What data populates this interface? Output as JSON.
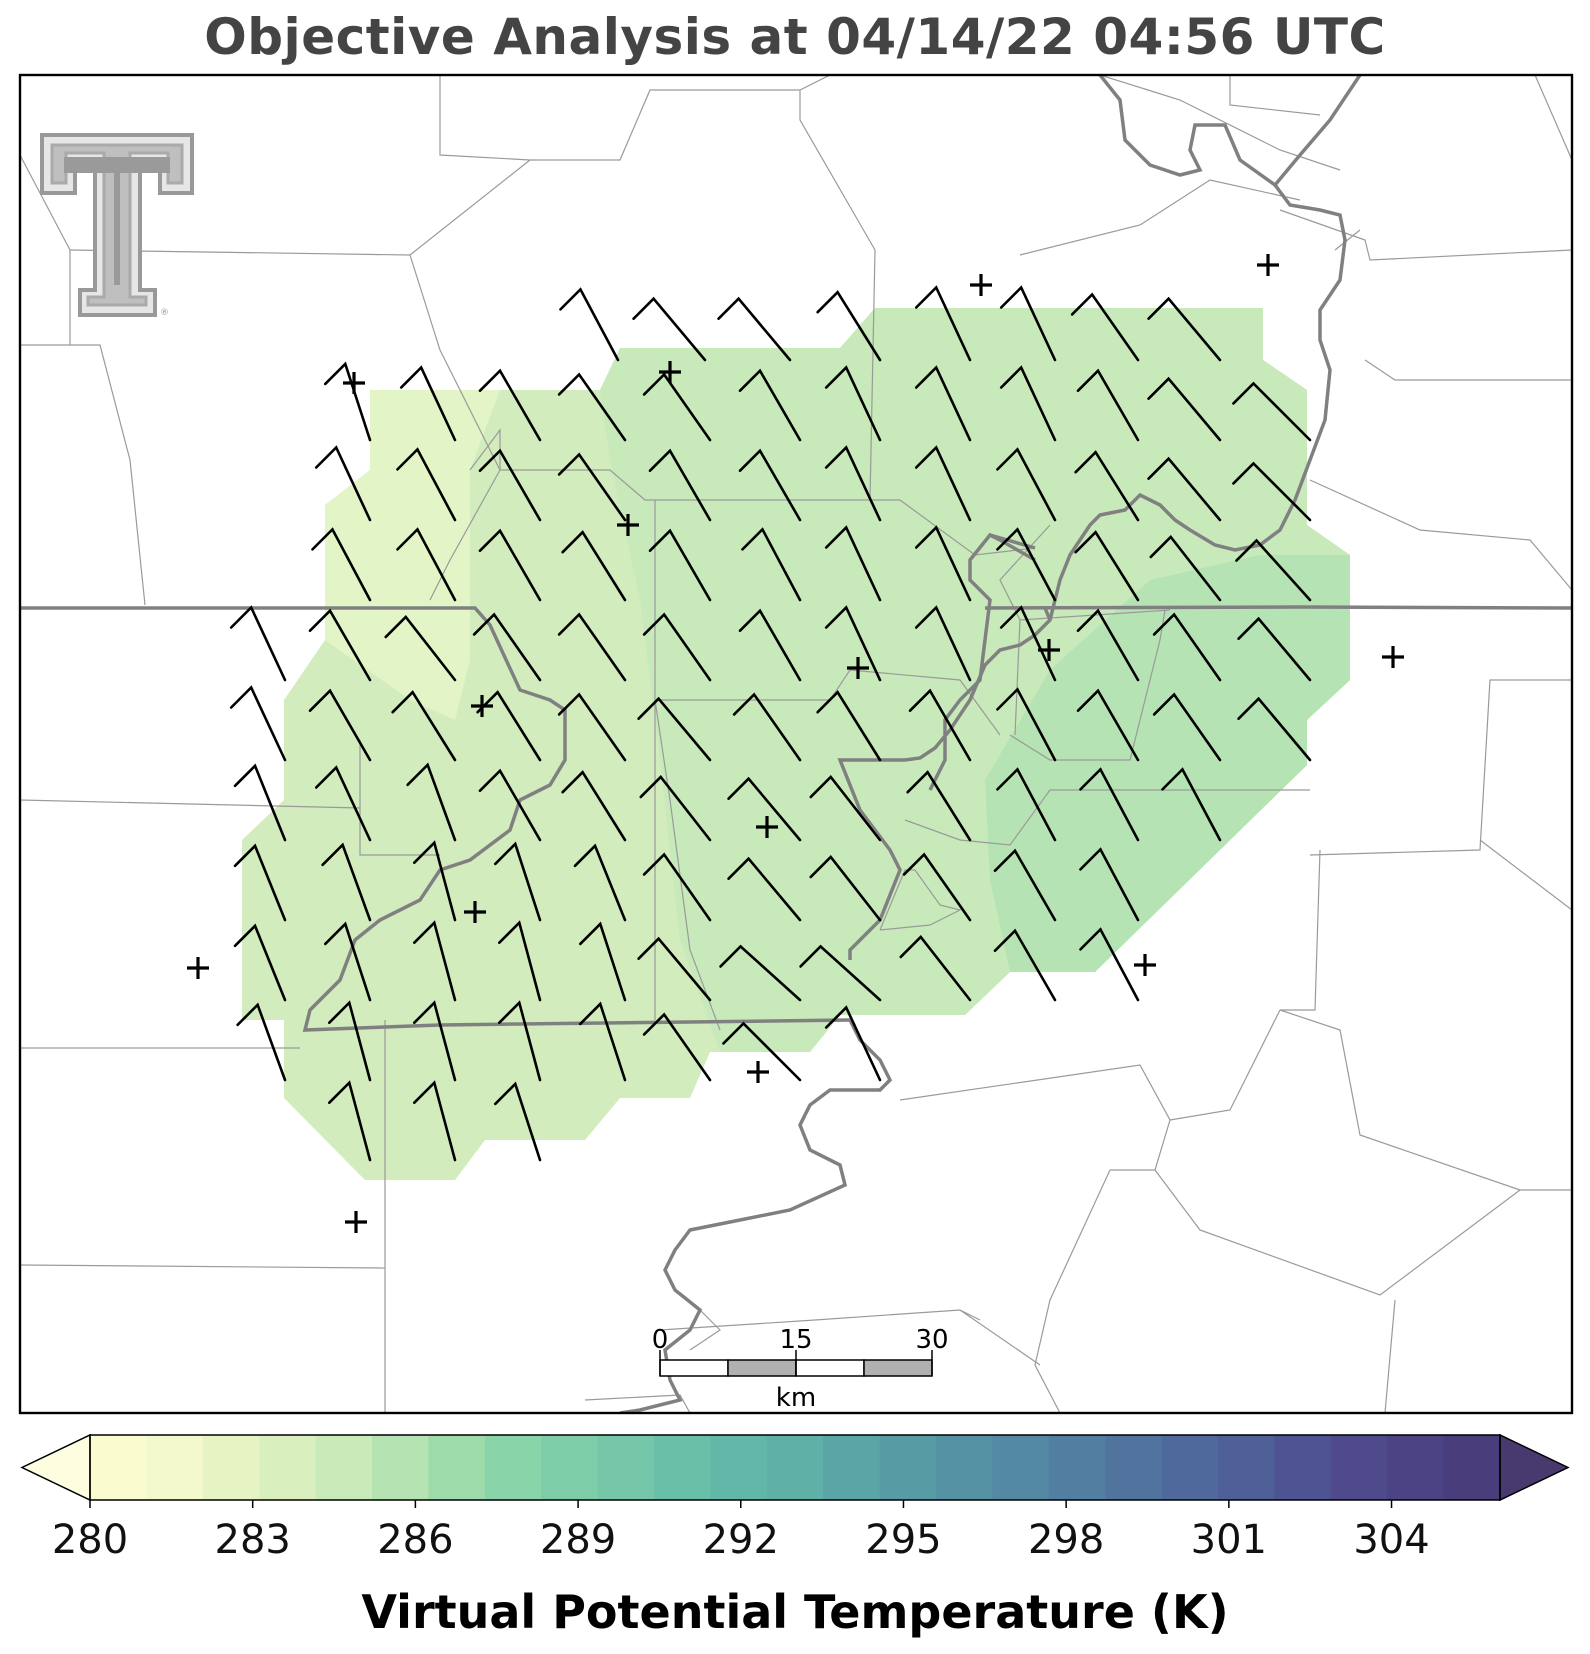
{
  "title": "Objective Analysis at 04/14/22 04:56 UTC",
  "colorbar": {
    "label": "Virtual Potential Temperature (K)",
    "min": 280,
    "max": 306,
    "ticks": [
      280,
      283,
      286,
      289,
      292,
      295,
      298,
      301,
      304
    ],
    "colors": [
      "#fbfbd0",
      "#f3f9cc",
      "#e6f4c4",
      "#d9efbe",
      "#c9eab9",
      "#b5e3b2",
      "#9edbaa",
      "#89d4a8",
      "#7ecda9",
      "#76c7a9",
      "#6abfa8",
      "#63b7a8",
      "#5fb0a7",
      "#5aa6a6",
      "#579ca5",
      "#5592a4",
      "#5489a3",
      "#527ea1",
      "#51749f",
      "#50699c",
      "#4f5f98",
      "#4e5493",
      "#4e4a8c",
      "#4c4385",
      "#493d7b"
    ],
    "under_color": "#fdfde0",
    "over_color": "#48396f"
  },
  "scale_bar": {
    "labels": [
      "0",
      "15",
      "30"
    ],
    "unit": "km"
  },
  "logo": {
    "text": "TT",
    "mark": "®"
  },
  "map": {
    "background": "#ffffff",
    "border_color": "#000000"
  }
}
